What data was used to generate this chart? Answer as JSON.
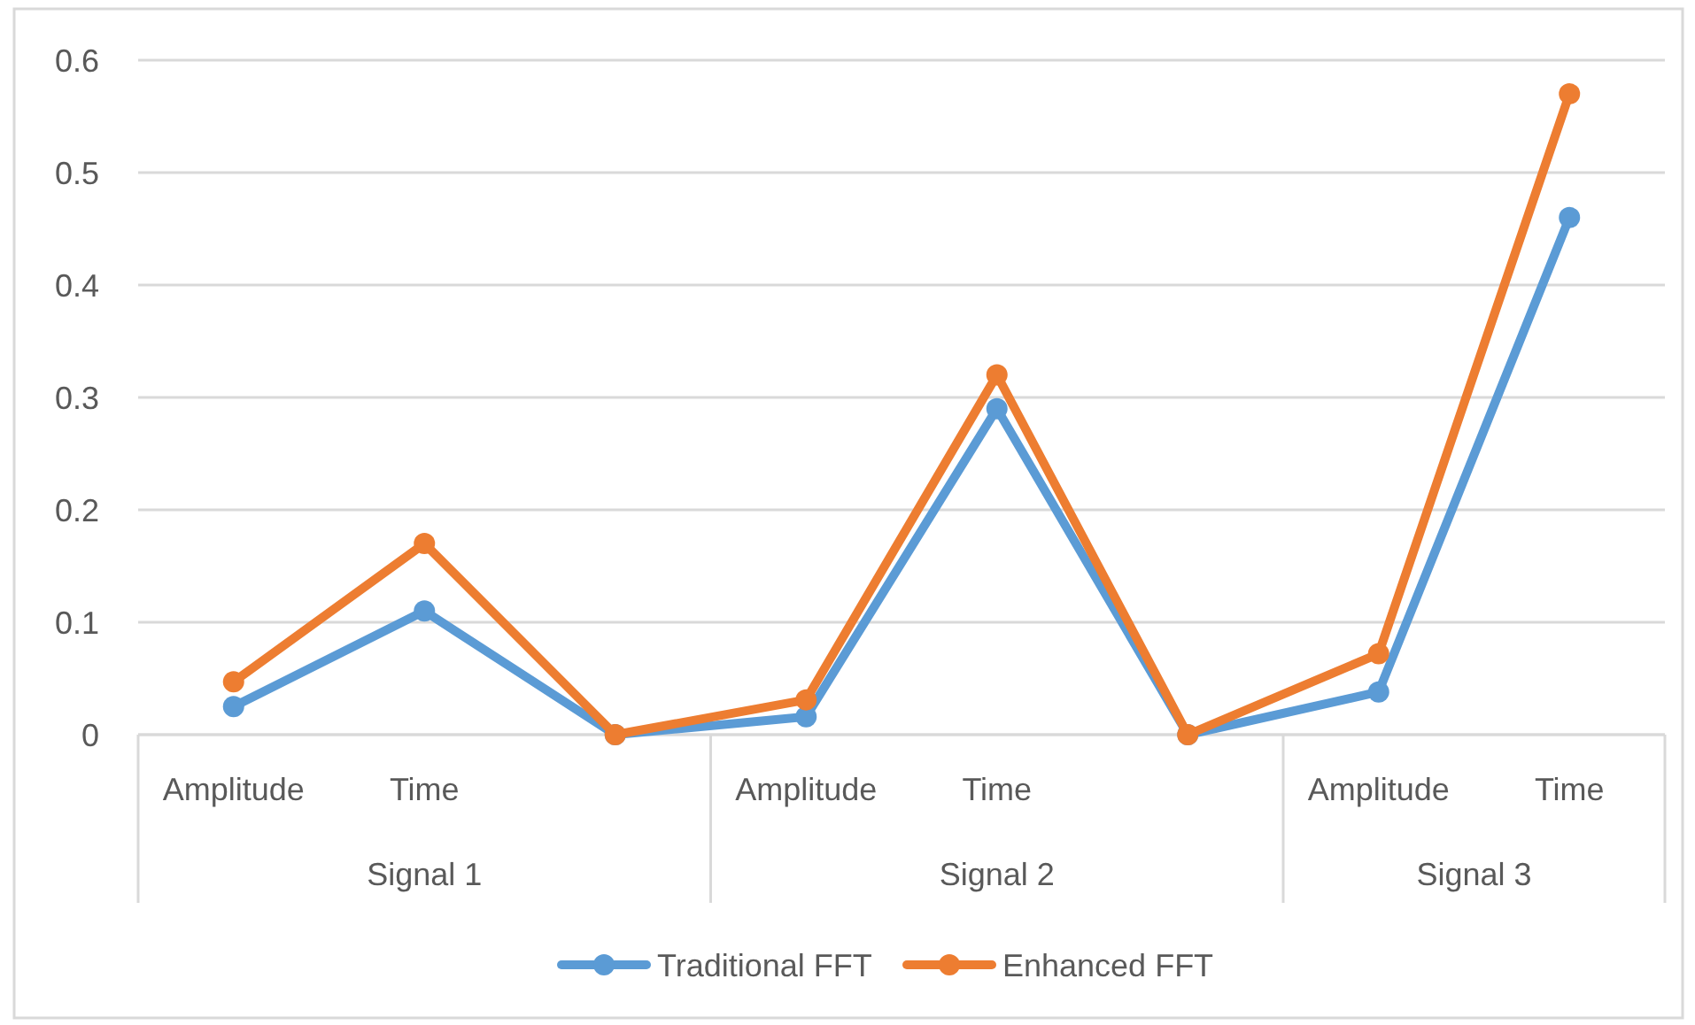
{
  "chart_data": {
    "type": "line",
    "categories": [
      "Amplitude",
      "Time",
      null,
      "Amplitude",
      "Time",
      null,
      "Amplitude",
      "Time"
    ],
    "series": [
      {
        "name": "Traditional FFT",
        "color": "#5b9bd5",
        "values": [
          0.025,
          0.11,
          0,
          0.016,
          0.29,
          0,
          0.038,
          0.46
        ]
      },
      {
        "name": "Enhanced FFT",
        "color": "#ed7d31",
        "values": [
          0.047,
          0.17,
          0,
          0.031,
          0.32,
          0,
          0.072,
          0.57
        ]
      }
    ],
    "annotations": [
      "Signal 1",
      "Signal 2",
      "Signal 3"
    ],
    "ylim": [
      0,
      0.6
    ],
    "yticks": [
      0,
      0.1,
      0.2,
      0.3,
      0.4,
      0.5,
      0.6
    ],
    "grid": "y",
    "legend": "bottom",
    "marker": "circle",
    "line_style": "solid"
  }
}
